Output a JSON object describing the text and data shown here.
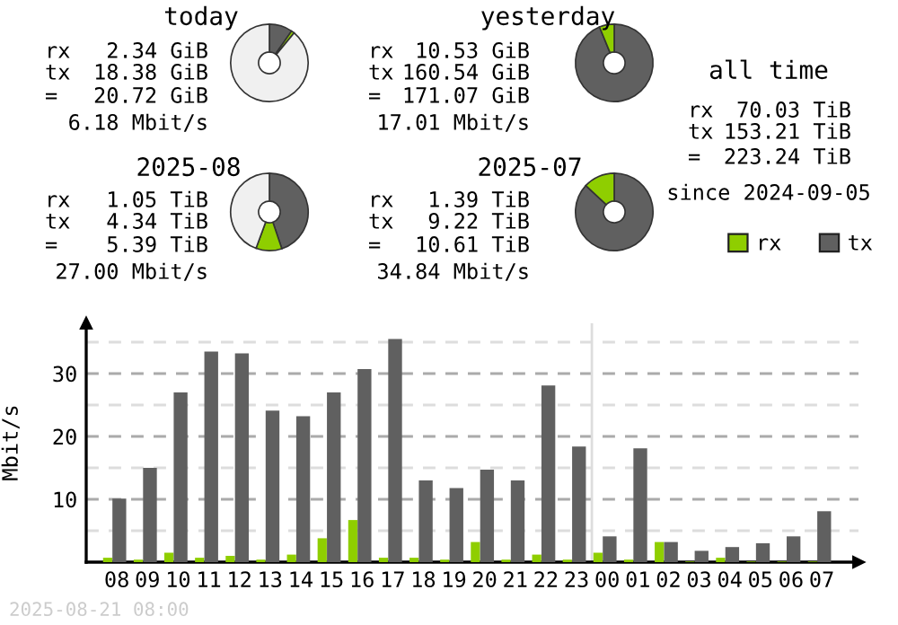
{
  "chart_data": [
    {
      "type": "donut",
      "title": "today",
      "categories": [
        null,
        null,
        null
      ],
      "values": [
        9.7,
        1.3,
        89.0
      ],
      "colors": [
        "#606060",
        "#8fce00",
        "#f0f0f0"
      ],
      "annotations": [
        "rx 2.34 GiB",
        "tx 18.38 GiB",
        "= 20.72 GiB",
        "6.18 Mbit/s"
      ]
    },
    {
      "type": "donut",
      "title": "yesterday",
      "categories": [
        null,
        null
      ],
      "values": [
        93.8,
        6.2
      ],
      "colors": [
        "#606060",
        "#8fce00"
      ],
      "annotations": [
        "rx 10.53 GiB",
        "tx 160.54 GiB",
        "= 171.07 GiB",
        "17.01 Mbit/s"
      ]
    },
    {
      "type": "other",
      "title": "all time",
      "annotations": [
        "rx 70.03 TiB",
        "tx 153.21 TiB",
        "= 223.24 TiB",
        "since 2024-09-05"
      ]
    },
    {
      "type": "donut",
      "title": "2025-08",
      "categories": [
        null,
        null,
        null
      ],
      "values": [
        44.8,
        10.8,
        44.4
      ],
      "colors": [
        "#606060",
        "#8fce00",
        "#f0f0f0"
      ],
      "annotations": [
        "rx 1.05 TiB",
        "tx 4.34 TiB",
        "= 5.39 TiB",
        "27.00 Mbit/s"
      ]
    },
    {
      "type": "donut",
      "title": "2025-07",
      "categories": [
        null,
        null
      ],
      "values": [
        86.9,
        13.1
      ],
      "colors": [
        "#606060",
        "#8fce00"
      ],
      "annotations": [
        "rx 1.39 TiB",
        "tx 9.22 TiB",
        "= 10.61 TiB",
        "34.84 Mbit/s"
      ]
    },
    {
      "type": "bar",
      "ylabel": "Mbit/s",
      "categories": [
        "08",
        "09",
        "10",
        "11",
        "12",
        "13",
        "14",
        "15",
        "16",
        "17",
        "18",
        "19",
        "20",
        "21",
        "22",
        "23",
        "00",
        "01",
        "02",
        "03",
        "04",
        "05",
        "06",
        "07"
      ],
      "series": [
        {
          "name": "rx",
          "color": "#8fce00",
          "values": [
            0.7,
            0.4,
            1.5,
            0.7,
            1.0,
            0.4,
            1.2,
            3.8,
            6.7,
            0.7,
            0.7,
            0.4,
            3.2,
            0.4,
            1.2,
            0.4,
            1.5,
            0.4,
            3.2,
            0.1,
            0.7,
            0.1,
            0.1,
            0.1
          ]
        },
        {
          "name": "tx",
          "color": "#606060",
          "values": [
            10.1,
            15.0,
            27.0,
            33.5,
            33.2,
            24.1,
            23.2,
            27.0,
            30.7,
            35.5,
            13.0,
            11.8,
            14.7,
            13.0,
            28.1,
            18.4,
            4.1,
            18.1,
            3.2,
            1.8,
            2.4,
            3.0,
            4.1,
            8.1
          ]
        }
      ],
      "ylim": [
        0,
        38
      ],
      "yticks": [
        {
          "value": 5,
          "label": null
        },
        10,
        {
          "value": 15,
          "label": null
        },
        20,
        {
          "value": 25,
          "label": null
        },
        30,
        {
          "value": 35,
          "label": null
        }
      ],
      "grid": "y",
      "legend": "top right",
      "ref_lines": [
        {
          "axis": "x",
          "value": "00",
          "color": "#dddddd"
        }
      ],
      "annotations": [
        "2025-08-21 08:00"
      ]
    }
  ]
}
